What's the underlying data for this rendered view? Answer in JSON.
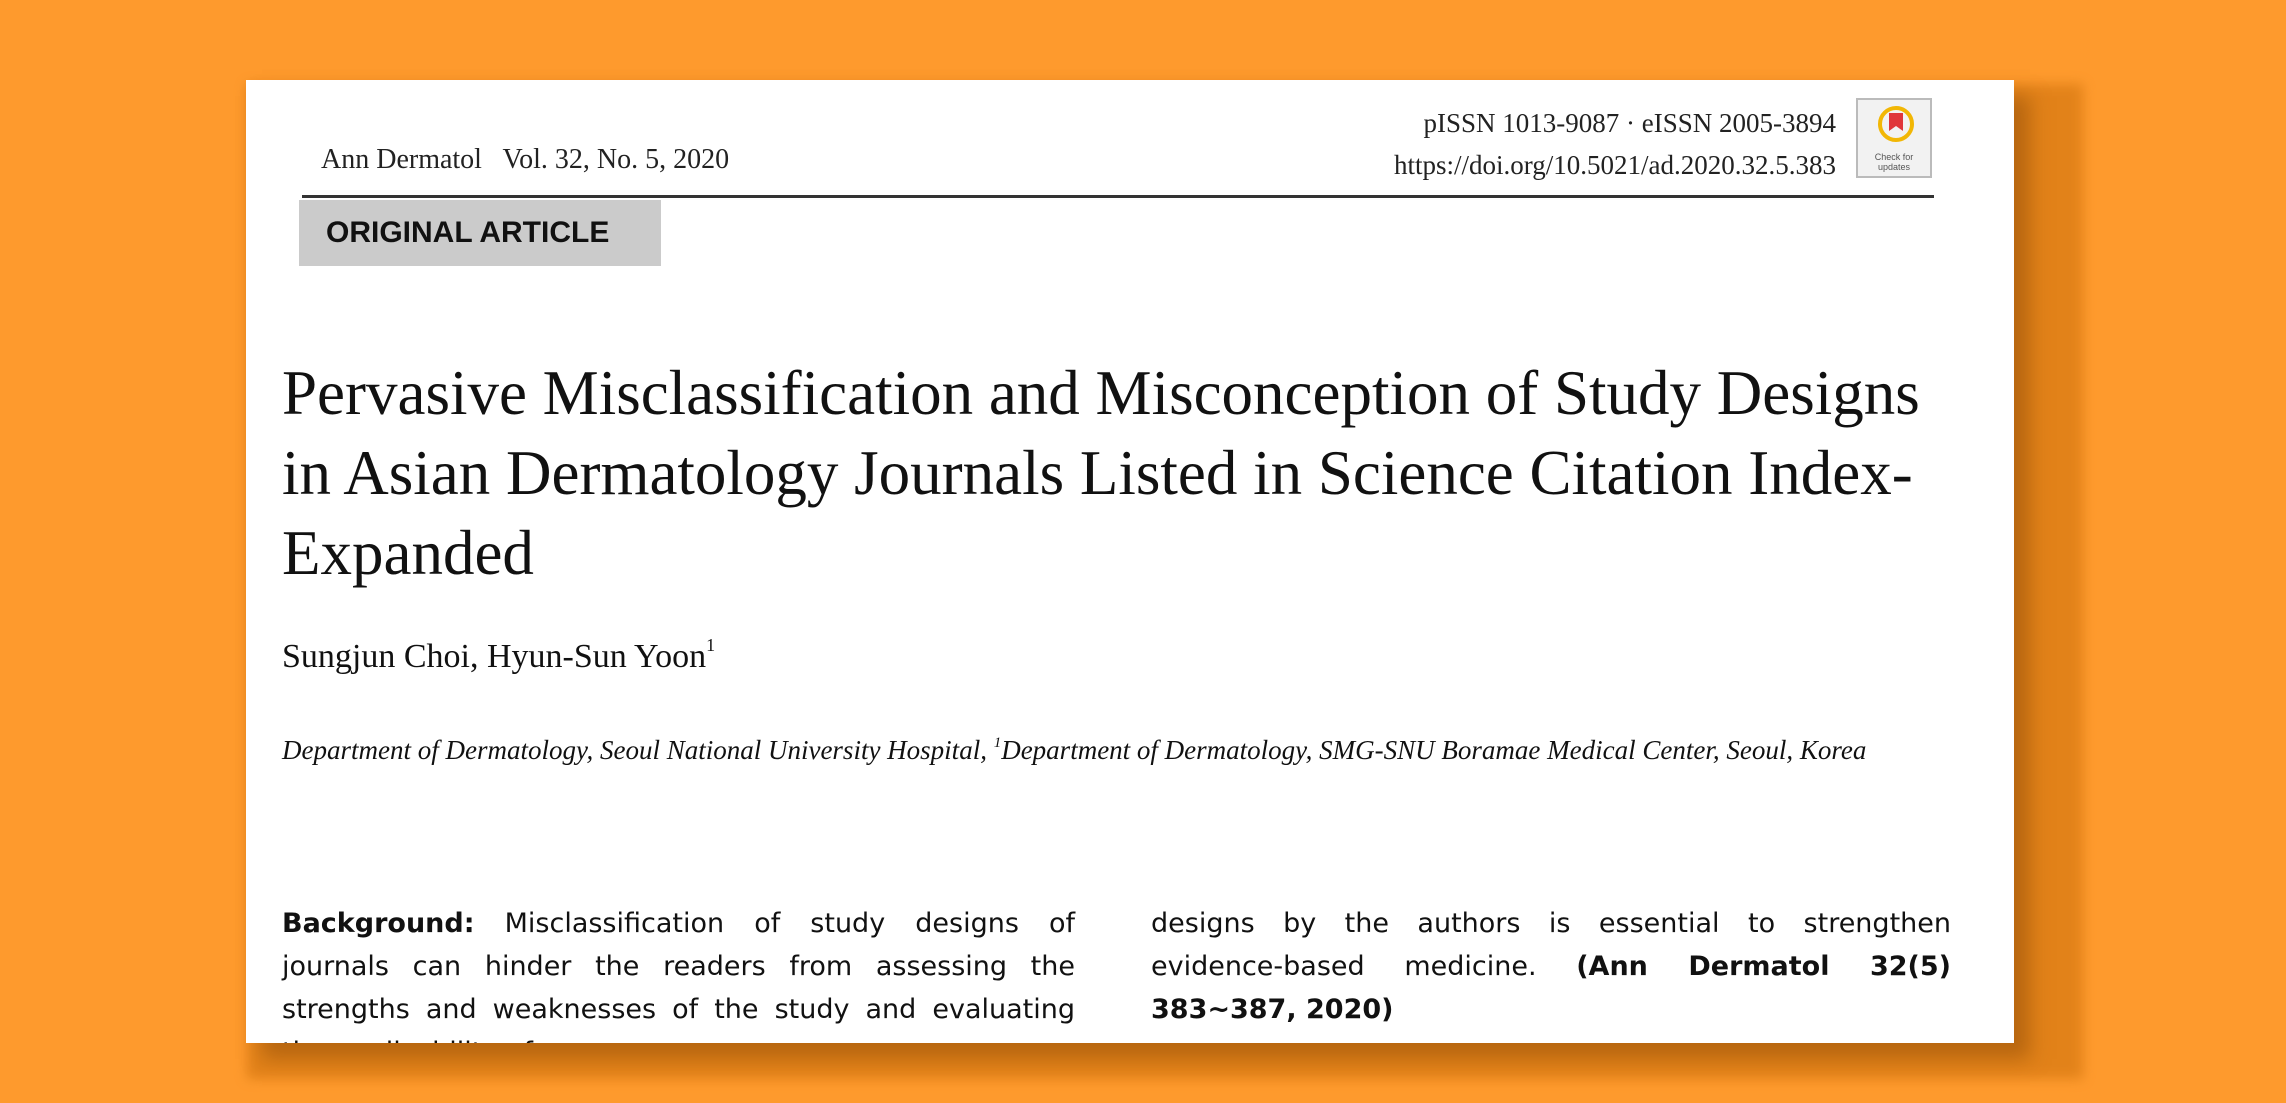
{
  "header": {
    "journal": "Ann Dermatol",
    "volume": "Vol. 32, No. 5, 2020",
    "issn": "pISSN 1013-9087 · eISSN 2005-3894",
    "doi": "https://doi.org/10.5021/ad.2020.32.5.383",
    "badge_label": "Check for updates",
    "badge_colors": {
      "ring": "#f2b705",
      "inner": "#e0363a"
    }
  },
  "article_type": "ORIGINAL ARTICLE",
  "title": "Pervasive Misclassification and Misconception of Study Designs in Asian Dermatology Journals Listed in Science Citation Index-Expanded",
  "authors": {
    "names": "Sungjun Choi, Hyun-Sun Yoon",
    "marker": "1"
  },
  "affiliation": {
    "first": "Department of Dermatology, Seoul National University Hospital, ",
    "marker": "1",
    "second": "Department of Dermatology, SMG-SNU Boramae Medical Center, Seoul, Korea"
  },
  "abstract": {
    "label": "Background:",
    "left_text": " Misclassification of study designs of journals can hinder the readers from assessing the strengths and weaknesses of the study and evaluating the applicability of",
    "right_text": "designs by the authors is essential to strengthen evidence-based medicine. ",
    "citation": "(Ann Dermatol 32(5) 383∼387, 2020)"
  }
}
